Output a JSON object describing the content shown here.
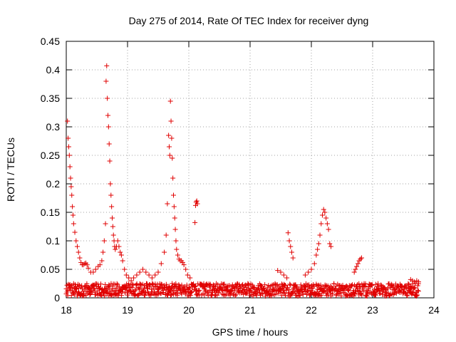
{
  "chart_data": {
    "type": "scatter",
    "title": "Day 275 of 2014, Rate Of TEC Index for receiver dyng",
    "xlabel": "GPS time / hours",
    "ylabel": "ROTI / TECUs",
    "xlim": [
      18,
      24
    ],
    "ylim": [
      0,
      0.45
    ],
    "xticks": [
      "18",
      "19",
      "20",
      "21",
      "22",
      "23",
      "24"
    ],
    "yticks": [
      "0",
      "0.05",
      "0.1",
      "0.15",
      "0.2",
      "0.25",
      "0.3",
      "0.35",
      "0.4",
      "0.45"
    ],
    "xtick_values": [
      18,
      19,
      20,
      21,
      22,
      23,
      24
    ],
    "ytick_values": [
      0,
      0.05,
      0.1,
      0.15,
      0.2,
      0.25,
      0.3,
      0.35,
      0.4,
      0.45
    ],
    "grid": true,
    "marker": "+",
    "color": "#e00000",
    "series": [
      {
        "name": "receiver dyng ROTI",
        "x": [
          18.02,
          18.03,
          18.04,
          18.05,
          18.06,
          18.07,
          18.08,
          18.09,
          18.1,
          18.11,
          18.12,
          18.14,
          18.16,
          18.18,
          18.2,
          18.22,
          18.24,
          18.26,
          18.28,
          18.3,
          18.32,
          18.34,
          18.36,
          18.4,
          18.44,
          18.48,
          18.52,
          18.55,
          18.58,
          18.6,
          18.62,
          18.64,
          18.65,
          18.66,
          18.67,
          18.68,
          18.69,
          18.7,
          18.71,
          18.72,
          18.73,
          18.74,
          18.75,
          18.76,
          18.77,
          18.78,
          18.79,
          18.8,
          18.82,
          18.84,
          18.86,
          18.88,
          18.9,
          18.92,
          18.95,
          18.98,
          19.02,
          19.06,
          19.1,
          19.15,
          19.2,
          19.25,
          19.3,
          19.35,
          19.4,
          19.45,
          19.5,
          19.55,
          19.6,
          19.63,
          19.65,
          19.67,
          19.68,
          19.69,
          19.7,
          19.71,
          19.72,
          19.73,
          19.74,
          19.75,
          19.76,
          19.77,
          19.78,
          19.79,
          19.8,
          19.82,
          19.84,
          19.86,
          19.88,
          19.9,
          19.92,
          19.95,
          19.98,
          20.02,
          20.1,
          20.11,
          20.12,
          20.13,
          20.14,
          21.45,
          21.5,
          21.55,
          21.6,
          21.62,
          21.64,
          21.66,
          21.68,
          21.7,
          21.9,
          21.95,
          22.0,
          22.05,
          22.08,
          22.1,
          22.12,
          22.14,
          22.16,
          22.18,
          22.2,
          22.22,
          22.24,
          22.26,
          22.28,
          22.3,
          22.32,
          22.7,
          22.72,
          22.74,
          22.76,
          22.78,
          22.8,
          22.82,
          23.62,
          23.65,
          23.68,
          23.7,
          23.72,
          23.75
        ],
        "y": [
          0.31,
          0.28,
          0.265,
          0.25,
          0.23,
          0.21,
          0.195,
          0.18,
          0.16,
          0.145,
          0.13,
          0.115,
          0.1,
          0.09,
          0.08,
          0.07,
          0.062,
          0.058,
          0.058,
          0.06,
          0.061,
          0.058,
          0.052,
          0.045,
          0.045,
          0.05,
          0.055,
          0.058,
          0.065,
          0.08,
          0.1,
          0.13,
          0.38,
          0.407,
          0.35,
          0.32,
          0.3,
          0.27,
          0.24,
          0.2,
          0.18,
          0.16,
          0.14,
          0.125,
          0.11,
          0.1,
          0.09,
          0.085,
          0.09,
          0.1,
          0.09,
          0.08,
          0.075,
          0.065,
          0.05,
          0.04,
          0.035,
          0.03,
          0.035,
          0.04,
          0.045,
          0.05,
          0.045,
          0.04,
          0.035,
          0.04,
          0.045,
          0.06,
          0.08,
          0.11,
          0.165,
          0.285,
          0.265,
          0.25,
          0.345,
          0.31,
          0.28,
          0.245,
          0.21,
          0.18,
          0.16,
          0.14,
          0.12,
          0.1,
          0.085,
          0.075,
          0.068,
          0.065,
          0.065,
          0.062,
          0.058,
          0.05,
          0.04,
          0.035,
          0.132,
          0.162,
          0.168,
          0.17,
          0.165,
          0.048,
          0.045,
          0.04,
          0.035,
          0.114,
          0.1,
          0.09,
          0.08,
          0.07,
          0.04,
          0.045,
          0.05,
          0.06,
          0.075,
          0.085,
          0.095,
          0.11,
          0.13,
          0.145,
          0.155,
          0.15,
          0.14,
          0.13,
          0.12,
          0.095,
          0.09,
          0.045,
          0.05,
          0.055,
          0.06,
          0.065,
          0.068,
          0.07,
          0.032,
          0.03,
          0.028,
          0.025,
          0.03,
          0.028
        ]
      }
    ]
  }
}
